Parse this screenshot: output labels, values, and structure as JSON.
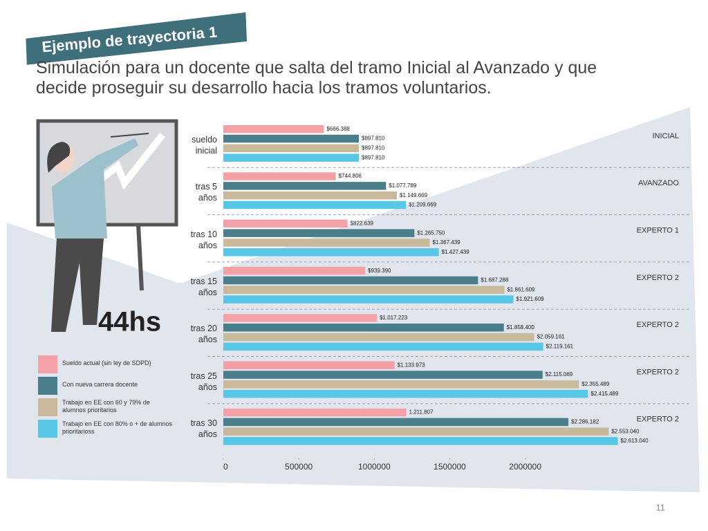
{
  "header": {
    "title": "Ejemplo de trayectoria 1",
    "subtitle": "Simulación para un docente que salta del tramo Inicial al Avanzado y que decide proseguir su desarrollo hacia los tramos voluntarios."
  },
  "badge": "44hs",
  "page_number": "11",
  "chart_data": {
    "type": "bar",
    "orientation": "horizontal",
    "categories": [
      "sueldo inicial",
      "tras 5 años",
      "tras 10 años",
      "tras 15 años",
      "tras 20 años",
      "tras 25 años",
      "tras 30 años"
    ],
    "annotations": [
      "INICIAL",
      "AVANZADO",
      "EXPERTO 1",
      "EXPERTO 2",
      "EXPERTO 2",
      "EXPERTO 2",
      "EXPERTO 2"
    ],
    "series": [
      {
        "name": "Sueldo actual (sin ley de SDPD)",
        "color": "#f3a1a7",
        "values": [
          666388,
          744806,
          822639,
          939390,
          1017223,
          1133973,
          1211807
        ],
        "value_labels": [
          "$666.388",
          "$744.806",
          "$822.639",
          "$939.390",
          "$1.017.223",
          "$1.133.973",
          "1.211.807"
        ]
      },
      {
        "name": "Con nueva carrera docente",
        "color": "#4b7e8b",
        "values": [
          897810,
          1077789,
          1265750,
          1687288,
          1858400,
          2115069,
          2286182
        ],
        "value_labels": [
          "$897.810",
          "$1.077.789",
          "$1.265.750",
          "$1.687.288",
          "$1.858.400",
          "$2.115.069",
          "$2.286.182"
        ]
      },
      {
        "name": "Trabajo en EE con 60 y 79% de alumnos prioritarios",
        "color": "#c9b99b",
        "values": [
          897810,
          1149669,
          1367439,
          1861609,
          2059161,
          2355489,
          2553040
        ],
        "value_labels": [
          "$897.810",
          "$1.149.669",
          "$1.367.439",
          "$1.861.609",
          "$2.059.161",
          "$2.355.489",
          "$2.553.040"
        ]
      },
      {
        "name": "Trabajo en EE con 80% o + de alumnos prioritarioss",
        "color": "#58c7e5",
        "values": [
          897810,
          1209669,
          1427439,
          1921609,
          2119161,
          2415489,
          2613040
        ],
        "value_labels": [
          "$897.810",
          "$1.209.669",
          "$1.427.439",
          "$1.921.609",
          "$2.119.161",
          "$2.415.489",
          "$2.613.040"
        ]
      }
    ],
    "xlim": [
      0,
      3000000
    ],
    "xticks": [
      0,
      500000,
      1000000,
      1500000,
      2000000
    ]
  }
}
